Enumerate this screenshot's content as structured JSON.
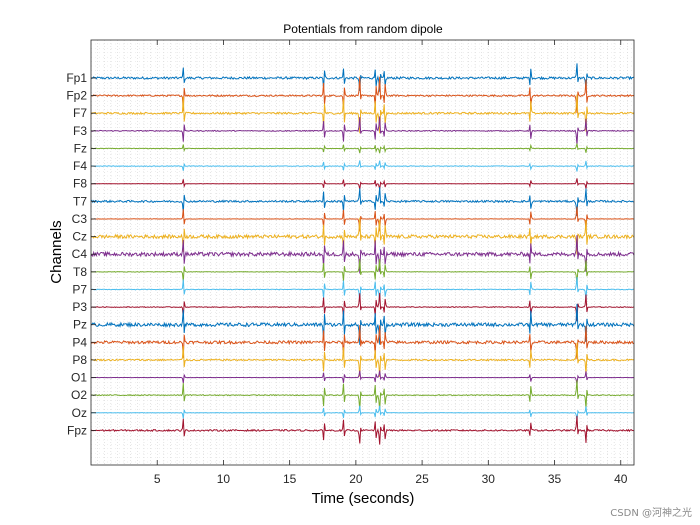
{
  "chart_data": {
    "type": "line",
    "title": "Potentials from random dipole",
    "xlabel": "Time (seconds)",
    "ylabel": "Channels",
    "xlim": [
      0,
      41
    ],
    "xticks": [
      5,
      10,
      15,
      20,
      25,
      30,
      35,
      40
    ],
    "grid": "dotted",
    "channels": [
      "Fp1",
      "Fp2",
      "F7",
      "F3",
      "Fz",
      "F4",
      "F8",
      "T7",
      "C3",
      "Cz",
      "C4",
      "T8",
      "P7",
      "P3",
      "Pz",
      "P4",
      "P8",
      "O1",
      "O2",
      "Oz",
      "Fpz"
    ],
    "colors": [
      "#0072BD",
      "#D95319",
      "#EDB120",
      "#7E2F8E",
      "#77AC30",
      "#4DBEEE",
      "#A2142F"
    ],
    "noise_levels": [
      0.35,
      0.25,
      0.3,
      0.15,
      0.08,
      0.1,
      0.05,
      0.3,
      0.05,
      0.55,
      0.6,
      0.08,
      0.1,
      0.12,
      0.55,
      0.45,
      0.25,
      0.02,
      0.15,
      0.06,
      0.25
    ],
    "spike_gains": [
      1.0,
      1.3,
      1.4,
      1.0,
      0.35,
      0.4,
      0.4,
      1.0,
      0.9,
      1.3,
      1.4,
      0.9,
      0.9,
      1.0,
      1.5,
      1.3,
      1.2,
      0.5,
      1.1,
      0.5,
      1.0
    ],
    "spike_times": [
      7.0,
      17.6,
      19.1,
      20.3,
      21.5,
      21.8,
      22.2,
      33.2,
      36.7,
      37.4
    ]
  },
  "watermark": "CSDN @河神之光"
}
